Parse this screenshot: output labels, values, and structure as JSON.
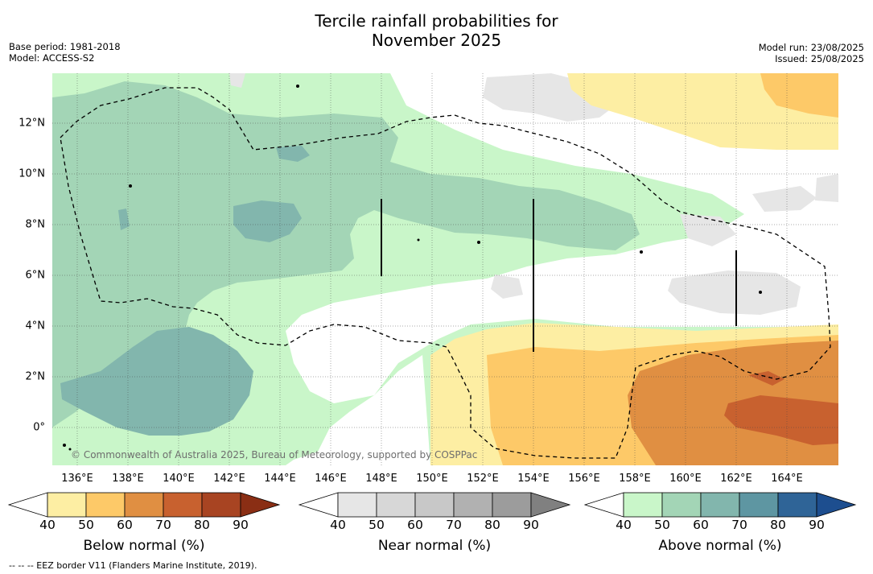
{
  "title_line1": "Tercile rainfall probabilities for",
  "title_line2": "November 2025",
  "base_period": "Base period: 1981-2018",
  "model": "Model: ACCESS-S2",
  "model_run": "Model run: 23/08/2025",
  "issued": "Issued: 25/08/2025",
  "copyright": "© Commonwealth of Australia 2025, Bureau of Meteorology, supported by COSPPac",
  "footnote": "--  --  -- EEZ border V11 (Flanders Marine Institute, 2019).",
  "map": {
    "lon_ticks": [
      "136°E",
      "138°E",
      "140°E",
      "142°E",
      "144°E",
      "146°E",
      "148°E",
      "150°E",
      "152°E",
      "154°E",
      "156°E",
      "158°E",
      "160°E",
      "162°E",
      "164°E"
    ],
    "lat_ticks": [
      "12°N",
      "10°N",
      "8°N",
      "6°N",
      "4°N",
      "2°N",
      "0°"
    ],
    "colors": {
      "below": [
        "#fdeea3",
        "#fdc968",
        "#e08f42",
        "#c8612f",
        "#a84422",
        "#8a2e14"
      ],
      "near": [
        "#e6e6e6",
        "#d7d7d7",
        "#c8c8c8",
        "#b1b1b1",
        "#9c9c9c",
        "#808080"
      ],
      "above": [
        "#c9f6c9",
        "#a3d5b6",
        "#82b6ad",
        "#5e96a2",
        "#2f6497",
        "#1d4e8f"
      ]
    }
  },
  "colorbars": [
    {
      "label": "Below normal (%)",
      "ticks": [
        "40",
        "50",
        "60",
        "70",
        "80",
        "90"
      ]
    },
    {
      "label": "Near normal (%)",
      "ticks": [
        "40",
        "50",
        "60",
        "70",
        "80",
        "90"
      ]
    },
    {
      "label": "Above normal (%)",
      "ticks": [
        "40",
        "50",
        "60",
        "70",
        "80",
        "90"
      ]
    }
  ]
}
